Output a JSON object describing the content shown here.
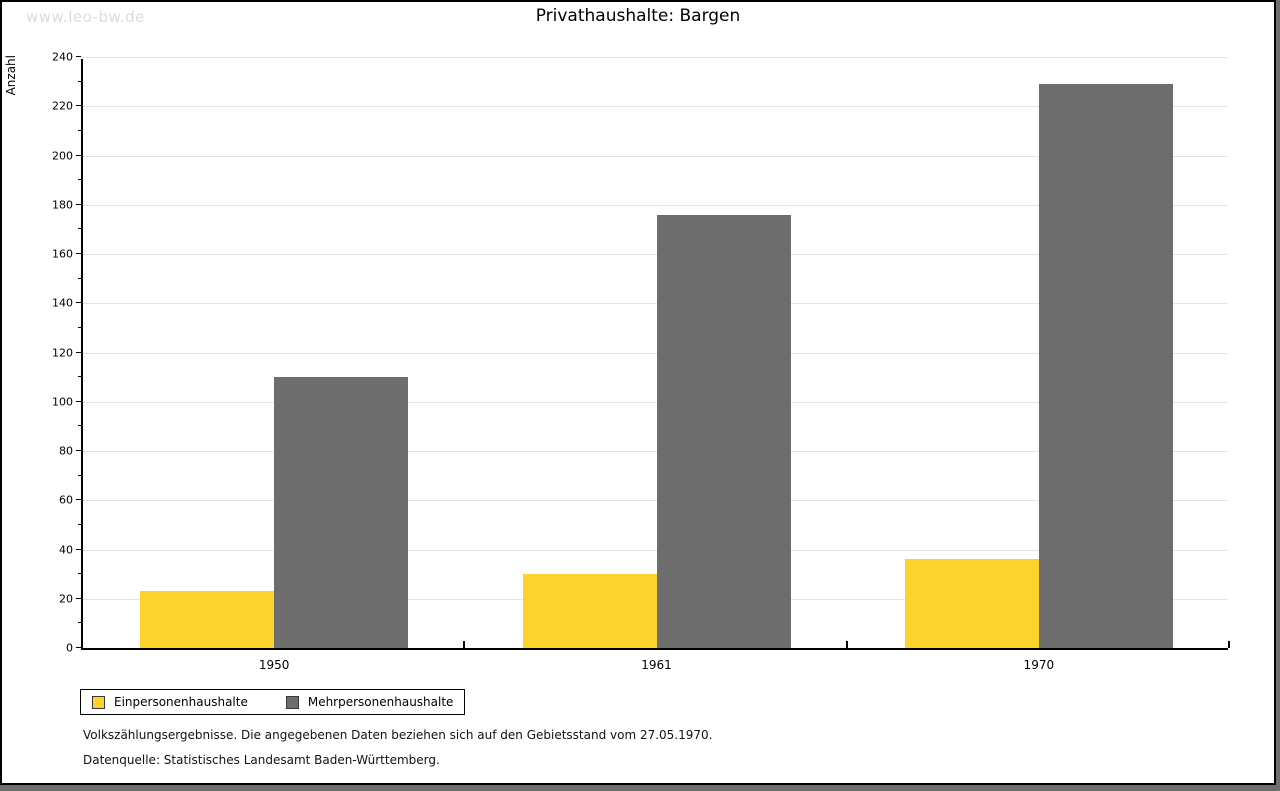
{
  "watermark": "www.leo-bw.de",
  "title": "Privathaushalte: Bargen",
  "chart_data": {
    "type": "bar",
    "title": "Privathaushalte: Bargen",
    "xlabel": "",
    "ylabel": "Anzahl",
    "categories": [
      "1950",
      "1961",
      "1970"
    ],
    "series": [
      {
        "name": "Einpersonenhaushalte",
        "color": "#fcd22d",
        "values": [
          23,
          30,
          36
        ]
      },
      {
        "name": "Mehrpersonenhaushalte",
        "color": "#6d6d6d",
        "values": [
          110,
          176,
          229
        ]
      }
    ],
    "ylim": [
      0,
      240
    ],
    "y_major_step": 20,
    "y_minor_step": 10,
    "grid": true,
    "legend_position": "bottom-left"
  },
  "footnotes": [
    "Volkszählungsergebnisse. Die angegebenen Daten beziehen sich auf den Gebietsstand vom 27.05.1970.",
    "Datenquelle: Statistisches Landesamt Baden-Württemberg."
  ]
}
